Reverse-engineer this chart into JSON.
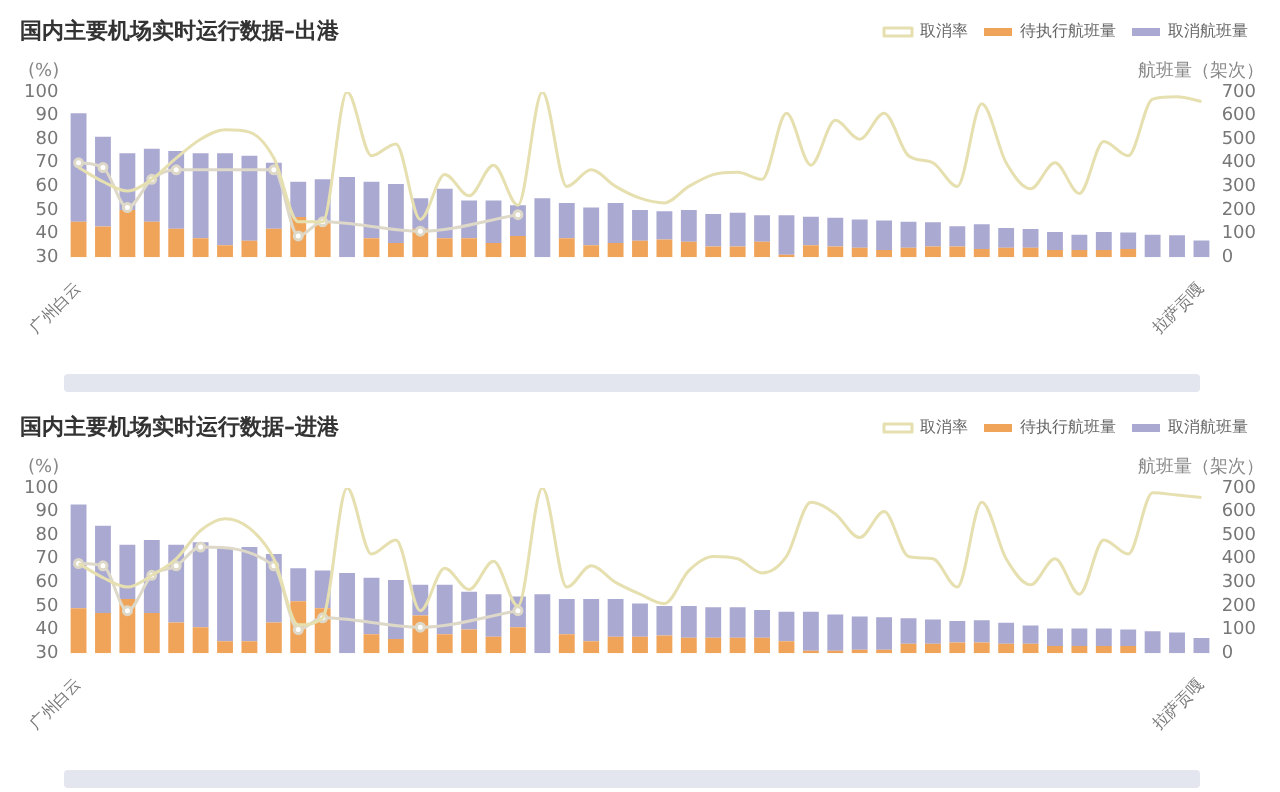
{
  "chart_data": [
    {
      "type": "bar",
      "title": "国内主要机场实时运行数据–出港",
      "ylabel": "(%)",
      "y2label": "航班量（架次）",
      "stacked": true,
      "legend": "top right",
      "grid": false,
      "categories": [
        "广州白云",
        null,
        null,
        null,
        null,
        null,
        null,
        null,
        null,
        null,
        null,
        null,
        null,
        null,
        null,
        null,
        null,
        null,
        null,
        null,
        null,
        null,
        null,
        null,
        null,
        null,
        null,
        null,
        null,
        null,
        null,
        null,
        null,
        null,
        null,
        null,
        null,
        null,
        null,
        null,
        null,
        null,
        null,
        null,
        null,
        null,
        "拉萨贡嘎"
      ],
      "ylim": [
        30,
        100
      ],
      "yticks": [
        30,
        40,
        50,
        60,
        70,
        80,
        90,
        100
      ],
      "y2lim": [
        0,
        700
      ],
      "y2ticks": [
        0,
        100,
        200,
        300,
        400,
        500,
        600,
        700
      ],
      "series": [
        {
          "name": "待执行航班量",
          "axis": "y2",
          "color": "#f0a45a",
          "values": [
            150,
            130,
            200,
            150,
            120,
            80,
            50,
            70,
            120,
            170,
            150,
            0,
            80,
            60,
            120,
            80,
            80,
            60,
            90,
            0,
            80,
            50,
            60,
            70,
            75,
            65,
            45,
            45,
            65,
            10,
            50,
            45,
            40,
            30,
            40,
            45,
            45,
            35,
            40,
            40,
            30,
            30,
            30,
            35,
            0,
            0,
            0
          ]
        },
        {
          "name": "取消航班量",
          "axis": "y2",
          "color": "#aaa9d2",
          "values": [
            460,
            380,
            240,
            310,
            330,
            360,
            390,
            360,
            280,
            150,
            180,
            340,
            240,
            250,
            130,
            210,
            160,
            180,
            130,
            250,
            150,
            160,
            170,
            130,
            120,
            135,
            138,
            143,
            113,
            168,
            121,
            122,
            120,
            125,
            110,
            103,
            86,
            105,
            84,
            79,
            77,
            65,
            77,
            70,
            95,
            93,
            71
          ]
        },
        {
          "name": "取消率",
          "type": "line",
          "axis": "y",
          "color": "#e6dfb0",
          "marker": "none",
          "values": [
            68,
            62,
            58,
            63,
            72,
            80,
            84,
            83,
            72,
            45,
            45,
            100,
            73,
            78,
            46,
            65,
            56,
            69,
            52,
            100,
            60,
            67,
            60,
            55,
            53,
            60,
            65,
            66,
            63,
            91,
            69,
            88,
            80,
            91,
            73,
            70,
            60,
            95,
            70,
            59,
            70,
            57,
            79,
            73,
            97,
            98,
            96
          ]
        },
        {
          "type": "line",
          "axis": "y",
          "color": "#ddd8c8",
          "marker": "circle",
          "values": [
            70,
            68,
            51,
            63,
            67,
            null,
            null,
            null,
            67,
            39,
            45,
            null,
            null,
            null,
            41,
            null,
            null,
            null,
            48,
            null,
            null,
            null,
            null,
            null,
            null,
            null,
            null,
            null,
            null,
            null,
            null,
            null,
            null,
            null,
            null,
            null,
            null,
            null,
            null,
            null,
            null,
            null,
            null,
            null,
            null,
            null,
            null
          ]
        }
      ]
    },
    {
      "type": "bar",
      "title": "国内主要机场实时运行数据–进港",
      "ylabel": "(%)",
      "y2label": "航班量（架次）",
      "stacked": true,
      "legend": "top right",
      "grid": false,
      "categories": [
        "广州白云",
        null,
        null,
        null,
        null,
        null,
        null,
        null,
        null,
        null,
        null,
        null,
        null,
        null,
        null,
        null,
        null,
        null,
        null,
        null,
        null,
        null,
        null,
        null,
        null,
        null,
        null,
        null,
        null,
        null,
        null,
        null,
        null,
        null,
        null,
        null,
        null,
        null,
        null,
        null,
        null,
        null,
        null,
        null,
        null,
        null,
        "拉萨贡嘎"
      ],
      "ylim": [
        30,
        100
      ],
      "yticks": [
        30,
        40,
        50,
        60,
        70,
        80,
        90,
        100
      ],
      "y2lim": [
        0,
        700
      ],
      "y2ticks": [
        0,
        100,
        200,
        300,
        400,
        500,
        600,
        700
      ],
      "series": [
        {
          "name": "待执行航班量",
          "axis": "y2",
          "color": "#f0a45a",
          "values": [
            190,
            170,
            230,
            170,
            130,
            110,
            50,
            50,
            130,
            220,
            190,
            0,
            80,
            60,
            160,
            80,
            100,
            70,
            110,
            0,
            80,
            50,
            70,
            70,
            75,
            65,
            65,
            65,
            65,
            50,
            10,
            10,
            15,
            15,
            40,
            40,
            45,
            45,
            40,
            40,
            30,
            30,
            30,
            30,
            0,
            0,
            0
          ]
        },
        {
          "name": "取消航班量",
          "axis": "y2",
          "color": "#aaa9d2",
          "values": [
            440,
            370,
            230,
            310,
            330,
            360,
            400,
            400,
            290,
            140,
            160,
            340,
            240,
            250,
            130,
            210,
            160,
            180,
            130,
            250,
            150,
            180,
            160,
            140,
            125,
            135,
            130,
            130,
            118,
            126,
            166,
            154,
            140,
            137,
            108,
            103,
            91,
            95,
            89,
            77,
            75,
            75,
            75,
            70,
            93,
            88,
            64
          ]
        },
        {
          "name": "取消率",
          "type": "line",
          "axis": "y",
          "color": "#e6dfb0",
          "marker": "none",
          "values": [
            68,
            62,
            58,
            63,
            70,
            82,
            87,
            83,
            70,
            42,
            45,
            100,
            72,
            78,
            48,
            66,
            57,
            69,
            50,
            100,
            58,
            67,
            60,
            55,
            51,
            65,
            71,
            70,
            64,
            71,
            94,
            89,
            79,
            90,
            71,
            70,
            58,
            94,
            70,
            59,
            70,
            55,
            78,
            72,
            98,
            97,
            96
          ]
        },
        {
          "type": "line",
          "axis": "y",
          "color": "#ddd8c8",
          "marker": "circle",
          "values": [
            68,
            67,
            48,
            63,
            67,
            75,
            null,
            null,
            67,
            40,
            45,
            null,
            null,
            null,
            41,
            null,
            null,
            null,
            48,
            null,
            null,
            null,
            null,
            null,
            null,
            null,
            null,
            null,
            null,
            null,
            null,
            null,
            null,
            null,
            null,
            null,
            null,
            null,
            null,
            null,
            null,
            null,
            null,
            null,
            null,
            null,
            null
          ]
        }
      ]
    }
  ]
}
